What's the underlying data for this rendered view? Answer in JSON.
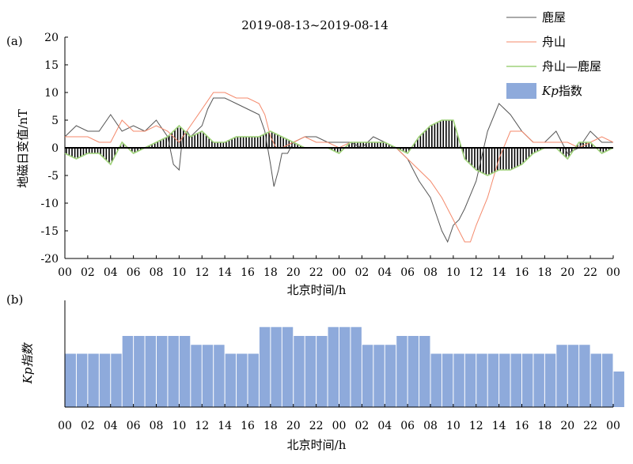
{
  "chart_data": [
    {
      "panel": "(a)",
      "type": "line",
      "title": "2019-08-13~2019-08-14",
      "xlabel": "北京时间/h",
      "ylabel": "地磁日变值/nT",
      "xlim": [
        0,
        48
      ],
      "ylim": [
        -20,
        20
      ],
      "x_ticks": [
        "00",
        "02",
        "04",
        "06",
        "08",
        "10",
        "12",
        "14",
        "16",
        "18",
        "20",
        "22",
        "00",
        "02",
        "04",
        "06",
        "08",
        "10",
        "12",
        "14",
        "16",
        "18",
        "20",
        "22",
        "00"
      ],
      "y_ticks": [
        {
          "value": 20,
          "label": "20"
        },
        {
          "value": 15,
          "label": "15"
        },
        {
          "value": 10,
          "label": "10"
        },
        {
          "value": 5,
          "label": "5"
        },
        {
          "value": 0,
          "label": "0"
        },
        {
          "value": -5,
          "label": "-5"
        },
        {
          "value": -10,
          "label": "-10"
        },
        {
          "value": -15,
          "label": "-15"
        },
        {
          "value": -20,
          "label": "-20"
        }
      ],
      "baseline": 0,
      "legend": [
        "鹿屋",
        "舟山",
        "舟山—鹿屋",
        "Kp指数"
      ],
      "legend_placement": "top-right",
      "series": [
        {
          "name": "鹿屋",
          "color": "#555555",
          "x": [
            0,
            1,
            2,
            3,
            4,
            5,
            6,
            7,
            8,
            9,
            9.5,
            10,
            10.3,
            10.7,
            11,
            12,
            12.5,
            13,
            14,
            15,
            16,
            17,
            17.5,
            18,
            18.3,
            18.7,
            19,
            19.5,
            20,
            21,
            22,
            23,
            24,
            25,
            26,
            27,
            28,
            29,
            30,
            31,
            32,
            32.5,
            33,
            33.5,
            34,
            34.5,
            35,
            36,
            37,
            38,
            39,
            40,
            41,
            42,
            43,
            44,
            45,
            46,
            47,
            48
          ],
          "y": [
            2,
            4,
            3,
            3,
            6,
            3,
            4,
            3,
            5,
            2,
            -3,
            -4,
            2,
            3,
            2,
            4,
            7,
            9,
            9,
            8,
            7,
            6,
            3,
            -3,
            -7,
            -4,
            -1,
            -1,
            1,
            2,
            2,
            1,
            1,
            1,
            0,
            2,
            1,
            0,
            -2,
            -6,
            -9,
            -12,
            -15,
            -17,
            -14,
            -13,
            -11,
            -6,
            3,
            8,
            6,
            3,
            1,
            1,
            3,
            -1,
            0,
            3,
            1,
            1
          ]
        },
        {
          "name": "舟山",
          "color": "#f4896b",
          "x": [
            0,
            1,
            2,
            3,
            4,
            5,
            6,
            7,
            8,
            9,
            10,
            11,
            12,
            13,
            14,
            15,
            16,
            17,
            17.5,
            18,
            18.5,
            19,
            20,
            21,
            22,
            23,
            24,
            25,
            26,
            27,
            28,
            29,
            30,
            31,
            32,
            33,
            34,
            34.5,
            35,
            35.5,
            36,
            37,
            38,
            39,
            40,
            41,
            42,
            43,
            44,
            45,
            46,
            47,
            48
          ],
          "y": [
            2,
            2,
            2,
            1,
            1,
            5,
            3,
            3,
            4,
            3,
            1,
            4,
            7,
            10,
            10,
            9,
            9,
            8,
            6,
            2,
            0,
            0,
            1,
            2,
            1,
            1,
            0,
            1,
            1,
            1,
            1,
            0,
            -2,
            -4,
            -6,
            -9,
            -13,
            -15,
            -17,
            -17,
            -14,
            -9,
            -2,
            3,
            3,
            1,
            1,
            1,
            1,
            0,
            1,
            2,
            1
          ]
        },
        {
          "name": "舟山—鹿屋",
          "color": "#9fd27a",
          "x": [
            0,
            1,
            2,
            3,
            4,
            5,
            6,
            7,
            8,
            9,
            10,
            11,
            12,
            13,
            14,
            15,
            16,
            17,
            18,
            19,
            20,
            21,
            22,
            23,
            24,
            25,
            26,
            27,
            28,
            29,
            30,
            31,
            32,
            33,
            34,
            35,
            36,
            37,
            38,
            39,
            40,
            41,
            42,
            43,
            44,
            45,
            46,
            47,
            48
          ],
          "y": [
            -1,
            -2,
            -1,
            -1,
            -3,
            1,
            -1,
            0,
            1,
            2,
            4,
            2,
            3,
            1,
            1,
            2,
            2,
            2,
            3,
            2,
            1,
            0,
            0,
            0,
            -1,
            1,
            1,
            1,
            1,
            0,
            -1,
            2,
            4,
            5,
            5,
            -2,
            -4,
            -5,
            -4,
            -4,
            -3,
            -1,
            0,
            0,
            -2,
            1,
            1,
            -1,
            0
          ]
        }
      ],
      "bars_series": "舟山—鹿屋"
    },
    {
      "panel": "(b)",
      "type": "bar",
      "xlabel": "北京时间/h",
      "ylabel": "Kp指数",
      "xlim": [
        0,
        48
      ],
      "ylim": [
        0,
        6
      ],
      "x_ticks": [
        "00",
        "02",
        "04",
        "06",
        "08",
        "10",
        "12",
        "14",
        "16",
        "18",
        "20",
        "22",
        "00",
        "02",
        "04",
        "06",
        "08",
        "10",
        "12",
        "14",
        "16",
        "18",
        "20",
        "22",
        "00"
      ],
      "bar_width_hours": 1,
      "color": "#8eaadb",
      "values": [
        3,
        3,
        3,
        3,
        3,
        4,
        4,
        4,
        4,
        4,
        4,
        3.5,
        3.5,
        3.5,
        3,
        3,
        3,
        4.5,
        4.5,
        4.5,
        4,
        4,
        4,
        4.5,
        4.5,
        4.5,
        3.5,
        3.5,
        3.5,
        4,
        4,
        4,
        3,
        3,
        3,
        3,
        3,
        3,
        3,
        3,
        3,
        3,
        3,
        3.5,
        3.5,
        3.5,
        3,
        3,
        2
      ]
    }
  ]
}
